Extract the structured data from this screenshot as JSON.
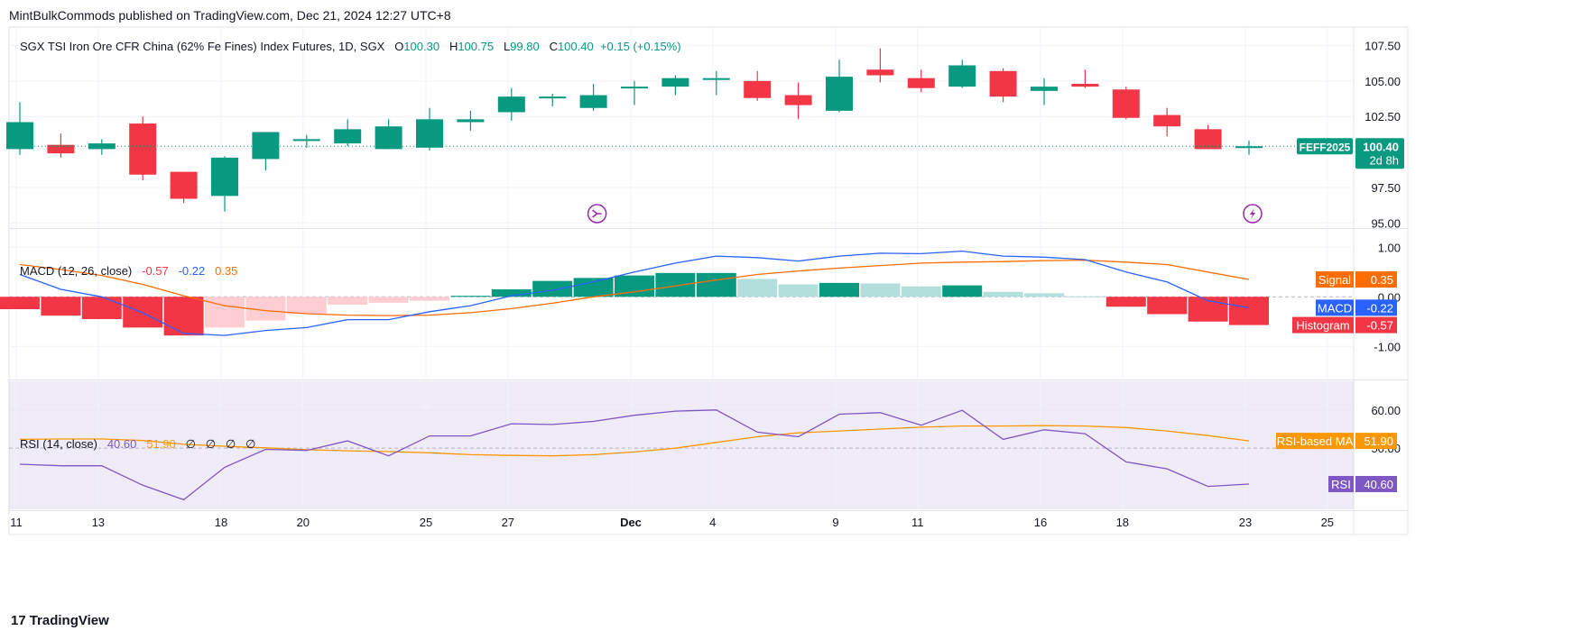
{
  "publisher": "MintBulkCommods published on TradingView.com, Dec 21, 2024 12:27 UTC+8",
  "footer": {
    "mark": "17",
    "brand": "TradingView"
  },
  "colors": {
    "up": "#089981",
    "down": "#f23645",
    "macd": "#2962ff",
    "signal": "#ff6d00",
    "rsi": "#7e57c2",
    "rsi_ma": "#ff9800",
    "hist_up_light": "#b2dfdb",
    "hist_down_light": "#ffcdd2"
  },
  "chart_data": [
    {
      "type": "candlestick",
      "title": "SGX TSI Iron Ore CFR China (62% Fe Fines) Index Futures, 1D, SGX",
      "ohlc_labels": {
        "o": "O",
        "o_val": "100.30",
        "h": "H",
        "h_val": "100.75",
        "l": "L",
        "l_val": "99.80",
        "c": "C",
        "c_val": "100.40",
        "chg": "+0.15 (+0.15%)"
      },
      "x_ticks": [
        "11",
        "13",
        "18",
        "20",
        "25",
        "27",
        "Dec",
        "4",
        "9",
        "11",
        "16",
        "18",
        "23",
        "25"
      ],
      "y_ticks": [
        "107.50",
        "105.00",
        "102.50",
        "97.50",
        "95.00"
      ],
      "ylim": [
        94.7,
        108.8
      ],
      "symbol_tag": "FEFF2025",
      "last_price": "100.40",
      "countdown": "2d 8h",
      "candles": [
        {
          "o": 100.2,
          "h": 103.5,
          "l": 99.8,
          "c": 102.1
        },
        {
          "o": 100.5,
          "h": 101.3,
          "l": 99.6,
          "c": 99.9
        },
        {
          "o": 100.2,
          "h": 100.9,
          "l": 99.8,
          "c": 100.6
        },
        {
          "o": 102.0,
          "h": 102.5,
          "l": 98.0,
          "c": 98.4
        },
        {
          "o": 98.6,
          "h": 98.6,
          "l": 96.4,
          "c": 96.7
        },
        {
          "o": 96.9,
          "h": 99.7,
          "l": 95.8,
          "c": 99.6
        },
        {
          "o": 99.5,
          "h": 101.4,
          "l": 98.7,
          "c": 101.4
        },
        {
          "o": 100.9,
          "h": 101.2,
          "l": 100.3,
          "c": 100.9
        },
        {
          "o": 100.6,
          "h": 102.3,
          "l": 100.4,
          "c": 101.6
        },
        {
          "o": 100.2,
          "h": 102.3,
          "l": 100.2,
          "c": 101.8
        },
        {
          "o": 100.3,
          "h": 103.1,
          "l": 100.1,
          "c": 102.3
        },
        {
          "o": 102.1,
          "h": 102.9,
          "l": 101.5,
          "c": 102.3
        },
        {
          "o": 102.8,
          "h": 104.5,
          "l": 102.2,
          "c": 103.9
        },
        {
          "o": 103.9,
          "h": 104.1,
          "l": 103.2,
          "c": 103.9
        },
        {
          "o": 103.1,
          "h": 104.8,
          "l": 102.9,
          "c": 104.0
        },
        {
          "o": 104.5,
          "h": 105.0,
          "l": 103.3,
          "c": 104.6
        },
        {
          "o": 104.6,
          "h": 105.4,
          "l": 104.0,
          "c": 105.2
        },
        {
          "o": 105.1,
          "h": 105.7,
          "l": 104.0,
          "c": 105.2
        },
        {
          "o": 105.0,
          "h": 105.7,
          "l": 103.6,
          "c": 103.8
        },
        {
          "o": 104.0,
          "h": 104.9,
          "l": 102.3,
          "c": 103.3
        },
        {
          "o": 102.9,
          "h": 106.5,
          "l": 102.8,
          "c": 105.3
        },
        {
          "o": 105.8,
          "h": 107.3,
          "l": 104.9,
          "c": 105.4
        },
        {
          "o": 105.2,
          "h": 105.8,
          "l": 104.2,
          "c": 104.5
        },
        {
          "o": 104.6,
          "h": 106.5,
          "l": 104.5,
          "c": 106.1
        },
        {
          "o": 105.7,
          "h": 105.9,
          "l": 103.5,
          "c": 103.9
        },
        {
          "o": 104.3,
          "h": 105.2,
          "l": 103.3,
          "c": 104.6
        },
        {
          "o": 104.8,
          "h": 105.8,
          "l": 104.5,
          "c": 104.6
        },
        {
          "o": 104.4,
          "h": 104.6,
          "l": 102.3,
          "c": 102.4
        },
        {
          "o": 102.6,
          "h": 103.1,
          "l": 101.1,
          "c": 101.8
        },
        {
          "o": 101.6,
          "h": 101.9,
          "l": 100.3,
          "c": 100.2
        },
        {
          "o": 100.3,
          "h": 100.8,
          "l": 99.8,
          "c": 100.4
        }
      ],
      "events": [
        {
          "index": 14,
          "icon": "split-arrow-icon"
        },
        {
          "index": 30,
          "icon": "lightning-icon"
        }
      ]
    },
    {
      "type": "macd",
      "label": "MACD (12, 26, close)",
      "vals": [
        "-0.57",
        "-0.22",
        "0.35"
      ],
      "y_ticks": [
        "1.00",
        "0.00",
        "-1.00"
      ],
      "ylim": [
        -1.65,
        1.35
      ],
      "tags": [
        {
          "name": "Signal",
          "value": "0.35",
          "value_num": 0.35
        },
        {
          "name": "MACD",
          "value": "-0.22",
          "value_num": -0.22
        },
        {
          "name": "Histogram",
          "value": "-0.57",
          "value_num": -0.57
        }
      ],
      "macd": [
        0.45,
        0.15,
        0.0,
        -0.32,
        -0.74,
        -0.78,
        -0.68,
        -0.62,
        -0.46,
        -0.46,
        -0.3,
        -0.18,
        0.02,
        0.13,
        0.3,
        0.5,
        0.68,
        0.82,
        0.79,
        0.72,
        0.82,
        0.88,
        0.87,
        0.92,
        0.82,
        0.8,
        0.75,
        0.5,
        0.3,
        -0.08,
        -0.22
      ],
      "signal": [
        0.65,
        0.55,
        0.43,
        0.25,
        0.02,
        -0.18,
        -0.28,
        -0.34,
        -0.37,
        -0.38,
        -0.37,
        -0.32,
        -0.24,
        -0.13,
        0.0,
        0.1,
        0.22,
        0.34,
        0.45,
        0.52,
        0.58,
        0.63,
        0.68,
        0.7,
        0.71,
        0.73,
        0.74,
        0.7,
        0.65,
        0.5,
        0.35
      ],
      "histogram": [
        -0.25,
        -0.38,
        -0.45,
        -0.62,
        -0.78,
        -0.62,
        -0.48,
        -0.35,
        -0.16,
        -0.12,
        -0.08,
        0.02,
        0.15,
        0.32,
        0.38,
        0.43,
        0.48,
        0.48,
        0.36,
        0.25,
        0.28,
        0.27,
        0.21,
        0.23,
        0.1,
        0.07,
        0.01,
        -0.2,
        -0.35,
        -0.5,
        -0.57
      ]
    },
    {
      "type": "rsi",
      "label": "RSI (14, close)",
      "vals": [
        "40.60",
        "51.90",
        "∅",
        "∅",
        "∅",
        "∅"
      ],
      "y_ticks": [
        "60.00",
        "50.00"
      ],
      "ylim": [
        34,
        67.5
      ],
      "tags": [
        {
          "name": "RSI-based MA",
          "value": "51.90",
          "value_num": 51.9
        },
        {
          "name": "RSI",
          "value": "40.60",
          "value_num": 40.6
        }
      ],
      "rsi": [
        45.8,
        45.4,
        45.4,
        40.3,
        36.5,
        45.0,
        49.7,
        49.4,
        51.9,
        48.0,
        53.2,
        53.2,
        56.4,
        56.2,
        57.0,
        58.6,
        59.7,
        60.0,
        54.2,
        53.0,
        58.9,
        59.3,
        56.0,
        59.9,
        52.3,
        54.8,
        53.8,
        46.4,
        44.6,
        40.0,
        40.6
      ],
      "rsi_ma": [
        52.3,
        52.4,
        52.4,
        52.0,
        51.0,
        50.5,
        50.1,
        49.6,
        49.3,
        49.1,
        48.8,
        48.3,
        48.1,
        48.0,
        48.3,
        49.0,
        50.0,
        51.5,
        53.0,
        54.0,
        54.5,
        55.0,
        55.5,
        55.8,
        55.8,
        55.9,
        55.8,
        55.4,
        54.5,
        53.3,
        51.9
      ]
    }
  ]
}
